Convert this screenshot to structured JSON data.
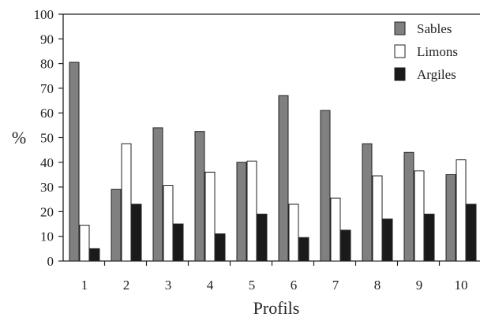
{
  "chart_data": {
    "type": "bar",
    "xlabel": "Profils",
    "ylabel": "%",
    "ylim": [
      0,
      100
    ],
    "yticks": [
      0,
      10,
      20,
      30,
      40,
      50,
      60,
      70,
      80,
      90,
      100
    ],
    "categories": [
      "1",
      "2",
      "3",
      "4",
      "5",
      "6",
      "7",
      "8",
      "9",
      "10"
    ],
    "grid": false,
    "legend_position": "top-right",
    "series": [
      {
        "name": "Sables",
        "color": "#808080",
        "values": [
          80.5,
          29,
          54,
          52.5,
          40,
          67,
          61,
          47.5,
          44,
          35
        ]
      },
      {
        "name": "Limons",
        "color": "#ffffff",
        "values": [
          14.5,
          47.5,
          30.5,
          36,
          40.5,
          23,
          25.5,
          34.5,
          36.5,
          41
        ]
      },
      {
        "name": "Argiles",
        "color": "#1a1a1a",
        "values": [
          5,
          23,
          15,
          11,
          19,
          9.5,
          12.5,
          17,
          19,
          23
        ]
      }
    ]
  }
}
